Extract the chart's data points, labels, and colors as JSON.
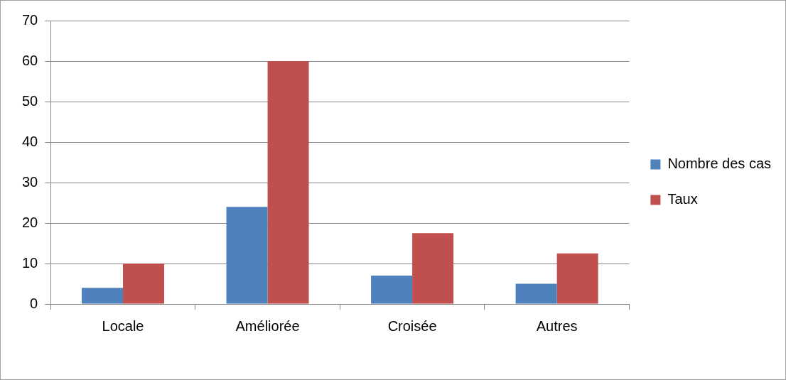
{
  "chart_data": {
    "type": "bar",
    "categories": [
      "Locale",
      "Améliorée",
      "Croisée",
      "Autres"
    ],
    "series": [
      {
        "name": "Nombre des cas",
        "color": "#4f81bd",
        "values": [
          4,
          24,
          7,
          5
        ]
      },
      {
        "name": "Taux",
        "color": "#c0504d",
        "values": [
          10,
          60,
          17.5,
          12.5
        ]
      }
    ],
    "ylim": [
      0,
      70
    ],
    "yticks": [
      0,
      10,
      20,
      30,
      40,
      50,
      60,
      70
    ],
    "grid": "y",
    "legend": "right"
  }
}
